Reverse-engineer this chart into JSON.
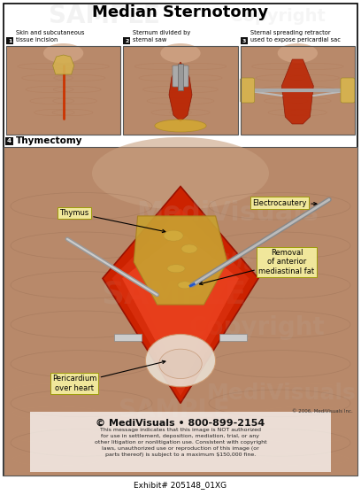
{
  "title": "Median Sternotomy",
  "bg_color": "#ffffff",
  "title_fontsize": 13,
  "steps": [
    {
      "num": "1",
      "label": "Skin and subcutaneous\ntissue incision"
    },
    {
      "num": "2",
      "label": "Sternum divided by\nsternal saw"
    },
    {
      "num": "3",
      "label": "Sternal spreading retractor\nused to expose pericardial sac"
    }
  ],
  "step4_label": "4",
  "step4_text": "Thymectomy",
  "copyright_text": "© MediVisuals • 800-899-2154",
  "legal_text": "This message indicates that this image is NOT authorized\nfor use in settlement, deposition, mediation, trial, or any\nother litigation or nonlitigation use. Consistent with copyright\nlaws, unauthorized use or reproduction of this image (or\nparts thereof) is subject to a maximum $150,000 fine.",
  "copyright_year": "© 2006, MediVisuals Inc.",
  "exhibit": "Exhibit# 205148_01XG",
  "skin_light": "#c8956c",
  "skin_mid": "#b07850",
  "skin_dark": "#9a6040",
  "wound_red": "#cc2200",
  "wound_dark": "#8b1a00",
  "thymus_yellow": "#d4a030",
  "peri_color": "#cc6633",
  "metal_color": "#aaaaaa",
  "label_bg": "#f5f0a0",
  "label_border": "#999900",
  "watermark_color": "#cccccc"
}
